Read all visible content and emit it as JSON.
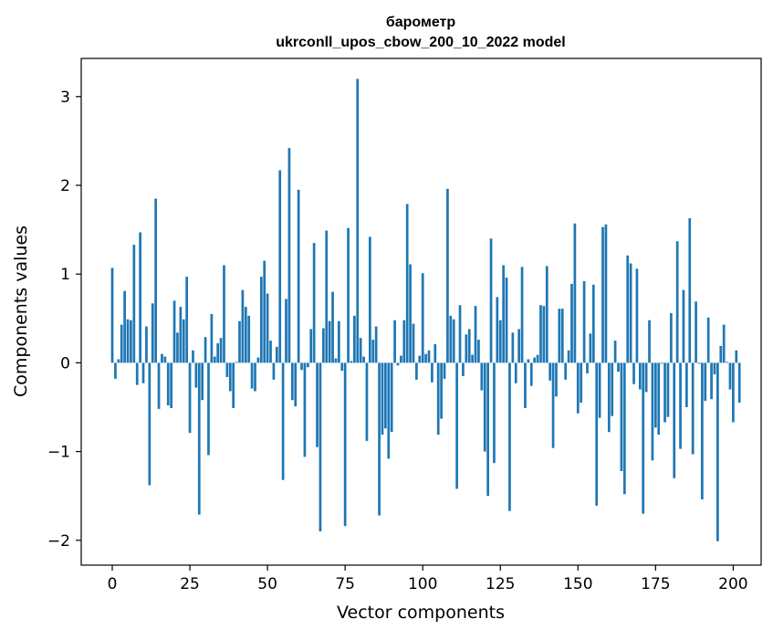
{
  "chart_data": {
    "type": "bar",
    "title_line1": "барометр",
    "title_line2": "ukrconll_upos_cbow_200_10_2022 model",
    "xlabel": "Vector components",
    "ylabel": "Components values",
    "xlim": [
      -10,
      209
    ],
    "ylim": [
      -2.28,
      3.43
    ],
    "x_ticks": [
      0,
      25,
      50,
      75,
      100,
      125,
      150,
      175,
      200
    ],
    "x_tick_labels": [
      "0",
      "25",
      "50",
      "75",
      "100",
      "125",
      "150",
      "175",
      "200"
    ],
    "y_ticks": [
      -2,
      -1,
      0,
      1,
      2,
      3
    ],
    "y_tick_labels": [
      "−2",
      "−1",
      "0",
      "1",
      "2",
      "3"
    ],
    "bar_color": "#1f77b4",
    "grid": false,
    "values": [
      1.07,
      -0.18,
      0.04,
      0.43,
      0.81,
      0.49,
      0.48,
      1.33,
      -0.25,
      1.47,
      -0.23,
      0.41,
      -1.38,
      0.67,
      1.85,
      -0.52,
      0.1,
      0.07,
      -0.48,
      -0.51,
      0.7,
      0.34,
      0.63,
      0.49,
      0.97,
      -0.79,
      0.14,
      -0.28,
      -1.71,
      -0.42,
      0.29,
      -1.04,
      0.55,
      0.07,
      0.22,
      0.28,
      1.1,
      -0.16,
      -0.32,
      -0.51,
      0.01,
      0.47,
      0.82,
      0.63,
      0.53,
      -0.29,
      -0.32,
      0.06,
      0.97,
      1.15,
      0.78,
      0.25,
      -0.19,
      0.18,
      2.17,
      -1.32,
      0.72,
      2.42,
      -0.42,
      -0.49,
      1.95,
      -0.08,
      -1.06,
      -0.05,
      0.38,
      1.35,
      -0.95,
      -1.9,
      0.39,
      1.49,
      0.47,
      0.8,
      0.05,
      0.47,
      -0.09,
      -1.84,
      1.52,
      0.02,
      0.53,
      3.2,
      0.28,
      0.07,
      -0.88,
      1.42,
      0.26,
      0.41,
      -1.72,
      -0.81,
      -0.74,
      -1.08,
      -0.78,
      0.48,
      -0.03,
      0.08,
      0.48,
      1.79,
      1.11,
      0.44,
      -0.19,
      0.08,
      1.01,
      0.1,
      0.14,
      -0.22,
      0.21,
      -0.81,
      -0.63,
      -0.18,
      1.96,
      0.53,
      0.49,
      -1.42,
      0.65,
      -0.15,
      0.32,
      0.38,
      0.09,
      0.64,
      0.26,
      -0.31,
      -1.0,
      -1.5,
      1.4,
      -1.13,
      0.74,
      0.48,
      1.1,
      0.96,
      -1.67,
      0.34,
      -0.23,
      0.38,
      1.08,
      -0.51,
      0.04,
      -0.26,
      0.06,
      0.09,
      0.65,
      0.64,
      1.09,
      -0.2,
      -0.96,
      -0.38,
      0.61,
      0.61,
      -0.19,
      0.14,
      0.89,
      1.57,
      -0.57,
      -0.45,
      0.92,
      -0.12,
      0.33,
      0.88,
      -1.61,
      -0.62,
      1.53,
      1.56,
      -0.78,
      -0.6,
      0.25,
      -0.1,
      -1.22,
      -1.48,
      1.21,
      1.12,
      -0.24,
      1.06,
      -0.3,
      -1.7,
      -0.33,
      0.48,
      -1.1,
      -0.73,
      -0.81,
      -0.01,
      -0.67,
      -0.61,
      0.56,
      -1.3,
      1.37,
      -0.97,
      0.82,
      -0.5,
      1.63,
      -1.03,
      0.69,
      -0.01,
      -1.54,
      -0.43,
      0.51,
      -0.41,
      -0.13,
      -2.01,
      0.19,
      0.43,
      0.01,
      -0.3,
      -0.67,
      0.14,
      -0.45
    ]
  }
}
